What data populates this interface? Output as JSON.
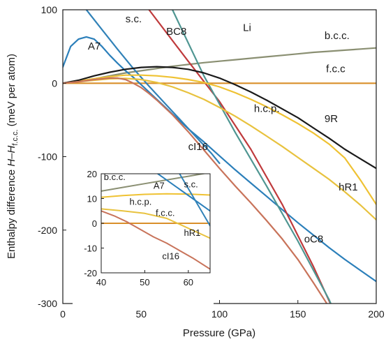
{
  "chart_data": {
    "type": "line",
    "xlabel": "Pressure (GPa)",
    "ylabel": {
      "prefix": "Enthalpy difference ",
      "italic": "H–H",
      "sub": "f.c.c.",
      "suffix": " (meV per atom)"
    },
    "xlim": [
      0,
      200
    ],
    "ylim": [
      -300,
      100
    ],
    "xticks": [
      0,
      50,
      100,
      150,
      200
    ],
    "yticks": [
      -300,
      -200,
      -100,
      0,
      100
    ],
    "grid": false,
    "series": [
      {
        "name": "b.c.c.",
        "color": "#8a8f72",
        "x": [
          0,
          10,
          20,
          30,
          40,
          50,
          60,
          70,
          80,
          90,
          100,
          110,
          120,
          130,
          140,
          150,
          160,
          170,
          180,
          190,
          200
        ],
        "y": [
          0,
          3,
          6,
          10,
          14,
          17,
          20,
          23,
          25.5,
          28,
          30,
          32,
          34,
          36,
          38,
          40,
          42,
          43.5,
          45,
          46.5,
          48
        ]
      },
      {
        "name": "f.c.c",
        "color": "#d98f2a",
        "x": [
          0,
          200
        ],
        "y": [
          0,
          0
        ]
      },
      {
        "name": "A7",
        "color": "#2b7fba",
        "x": [
          0,
          5,
          10,
          15,
          20,
          25,
          30,
          35,
          40,
          45,
          50,
          55,
          60,
          65,
          70,
          75,
          80,
          90,
          100,
          110,
          120,
          130,
          140,
          150,
          160,
          170,
          180,
          190,
          200
        ],
        "y": [
          22,
          50,
          60,
          63,
          60,
          50,
          38,
          27,
          17,
          8,
          -2,
          -12,
          -22,
          -32,
          -42,
          -52,
          -62,
          -80,
          -99,
          -118,
          -136,
          -154,
          -172,
          -190,
          -207,
          -224,
          -240,
          -255,
          -270
        ]
      },
      {
        "name": "s.c.",
        "color": "#3182b8",
        "x": [
          15,
          25,
          35,
          45,
          55,
          65,
          75,
          85,
          95,
          100
        ],
        "y": [
          100,
          73,
          46,
          20,
          -4,
          -27,
          -50,
          -73,
          -96,
          -109
        ]
      },
      {
        "name": "BC8",
        "color": "#bf3a3c",
        "x": [
          55,
          80,
          100,
          120,
          140,
          160,
          175
        ],
        "y": [
          100,
          30,
          -25,
          -90,
          -165,
          -250,
          -320
        ]
      },
      {
        "name": "Li",
        "color": "#4f9692",
        "x": [
          70,
          90,
          110,
          130,
          150,
          170,
          175
        ],
        "y": [
          100,
          10,
          -67,
          -140,
          -215,
          -295,
          -320
        ]
      },
      {
        "name": "h.c.p.",
        "color": "#efc233",
        "x": [
          0,
          10,
          20,
          30,
          40,
          50,
          60,
          70,
          80,
          90,
          100,
          110,
          120,
          130,
          140,
          150,
          160,
          170,
          180,
          190,
          200
        ],
        "y": [
          0,
          3,
          6,
          9,
          11,
          11,
          10,
          8,
          5,
          1,
          -5,
          -13,
          -22,
          -32,
          -43,
          -55,
          -68,
          -83,
          -102,
          -132,
          -165
        ]
      },
      {
        "name": "9R",
        "color": "#1a1a1a",
        "x": [
          0,
          10,
          20,
          30,
          40,
          50,
          60,
          70,
          80,
          90,
          100,
          110,
          120,
          130,
          140,
          150,
          160,
          170,
          180,
          190,
          200
        ],
        "y": [
          0,
          4,
          10,
          15,
          19,
          21.5,
          22.5,
          21.5,
          19,
          14,
          7,
          -2,
          -12,
          -23,
          -35,
          -47,
          -61,
          -75,
          -90,
          -103,
          -116
        ]
      },
      {
        "name": "hR1",
        "color": "#e8c23e",
        "x": [
          0,
          10,
          20,
          30,
          40,
          50,
          60,
          70,
          80,
          90,
          100,
          110,
          120,
          130,
          140,
          150,
          160,
          170,
          180,
          190,
          200
        ],
        "y": [
          0,
          2,
          4,
          6,
          6.5,
          5,
          1,
          -5,
          -13,
          -22,
          -33,
          -45,
          -58,
          -72,
          -86,
          -101,
          -116,
          -131,
          -148,
          -166,
          -186
        ]
      },
      {
        "name": "cI16",
        "color": "#c8735a",
        "x": [
          0,
          10,
          20,
          30,
          35,
          40,
          45,
          50,
          55,
          60,
          70,
          80,
          90,
          100,
          110,
          120,
          130,
          140,
          150,
          160,
          170,
          175
        ],
        "y": [
          0,
          2,
          5,
          7,
          7,
          5,
          0,
          -6,
          -14,
          -23,
          -43,
          -66,
          -91,
          -116,
          -140,
          -163,
          -187,
          -212,
          -240,
          -272,
          -305,
          -320
        ]
      }
    ],
    "labels": [
      {
        "text": "s.c.",
        "x": 40,
        "y": 83
      },
      {
        "text": "BC8",
        "x": 66,
        "y": 66
      },
      {
        "text": "Li",
        "x": 115,
        "y": 71
      },
      {
        "text": "b.c.c.",
        "x": 167,
        "y": 60
      },
      {
        "text": "A7",
        "x": 16,
        "y": 46
      },
      {
        "text": "f.c.c",
        "x": 168,
        "y": 15
      },
      {
        "text": "h.c.p.",
        "x": 122,
        "y": -39
      },
      {
        "text": "9R",
        "x": 167,
        "y": -53
      },
      {
        "text": "cI16",
        "x": 80,
        "y": -91
      },
      {
        "text": "hR1",
        "x": 176,
        "y": -146
      },
      {
        "text": "oC8",
        "x": 154,
        "y": -217
      }
    ],
    "inset": {
      "xlim": [
        40,
        65
      ],
      "ylim": [
        -20,
        20
      ],
      "xticks": [
        40,
        50,
        60
      ],
      "yticks": [
        -20,
        -10,
        0,
        10,
        20
      ],
      "series": [
        {
          "name": "b.c.c.",
          "color": "#8a8f72",
          "x": [
            40,
            45,
            50,
            55,
            60,
            65
          ],
          "y": [
            13,
            14.5,
            16,
            17.5,
            19,
            20.5
          ]
        },
        {
          "name": "f.c.c.",
          "color": "#d98f2a",
          "x": [
            40,
            65
          ],
          "y": [
            0,
            0
          ]
        },
        {
          "name": "h.c.p.",
          "color": "#efc233",
          "x": [
            40,
            45,
            50,
            55,
            60,
            65
          ],
          "y": [
            10.5,
            11.2,
            11.7,
            11.9,
            11.8,
            11.4
          ]
        },
        {
          "name": "A7",
          "color": "#2b7fba",
          "x": [
            53,
            57,
            61,
            65
          ],
          "y": [
            20,
            15,
            10,
            5
          ]
        },
        {
          "name": "s.c.",
          "color": "#3182b8",
          "x": [
            58,
            61,
            63,
            65
          ],
          "y": [
            20,
            11,
            5,
            -1
          ]
        },
        {
          "name": "hR1",
          "color": "#e8c23e",
          "x": [
            40,
            45,
            50,
            55,
            60,
            65
          ],
          "y": [
            5.8,
            5,
            4,
            2,
            -2,
            -6
          ]
        },
        {
          "name": "cI16",
          "color": "#c8735a",
          "x": [
            40,
            43,
            46,
            49,
            52,
            55,
            58,
            61,
            65
          ],
          "y": [
            5,
            3,
            0.5,
            -2.5,
            -5.5,
            -8,
            -11,
            -14,
            -18.5
          ]
        }
      ],
      "labels": [
        {
          "text": "b.c.c.",
          "x": 40.6,
          "y": 17.5
        },
        {
          "text": "A7",
          "x": 52,
          "y": 14
        },
        {
          "text": "s.c.",
          "x": 59,
          "y": 14.5
        },
        {
          "text": "h.c.p.",
          "x": 46.5,
          "y": 7.5
        },
        {
          "text": "f.c.c.",
          "x": 52.5,
          "y": 3
        },
        {
          "text": "hR1",
          "x": 59,
          "y": -5
        },
        {
          "text": "cI16",
          "x": 54,
          "y": -14.5
        }
      ]
    }
  }
}
